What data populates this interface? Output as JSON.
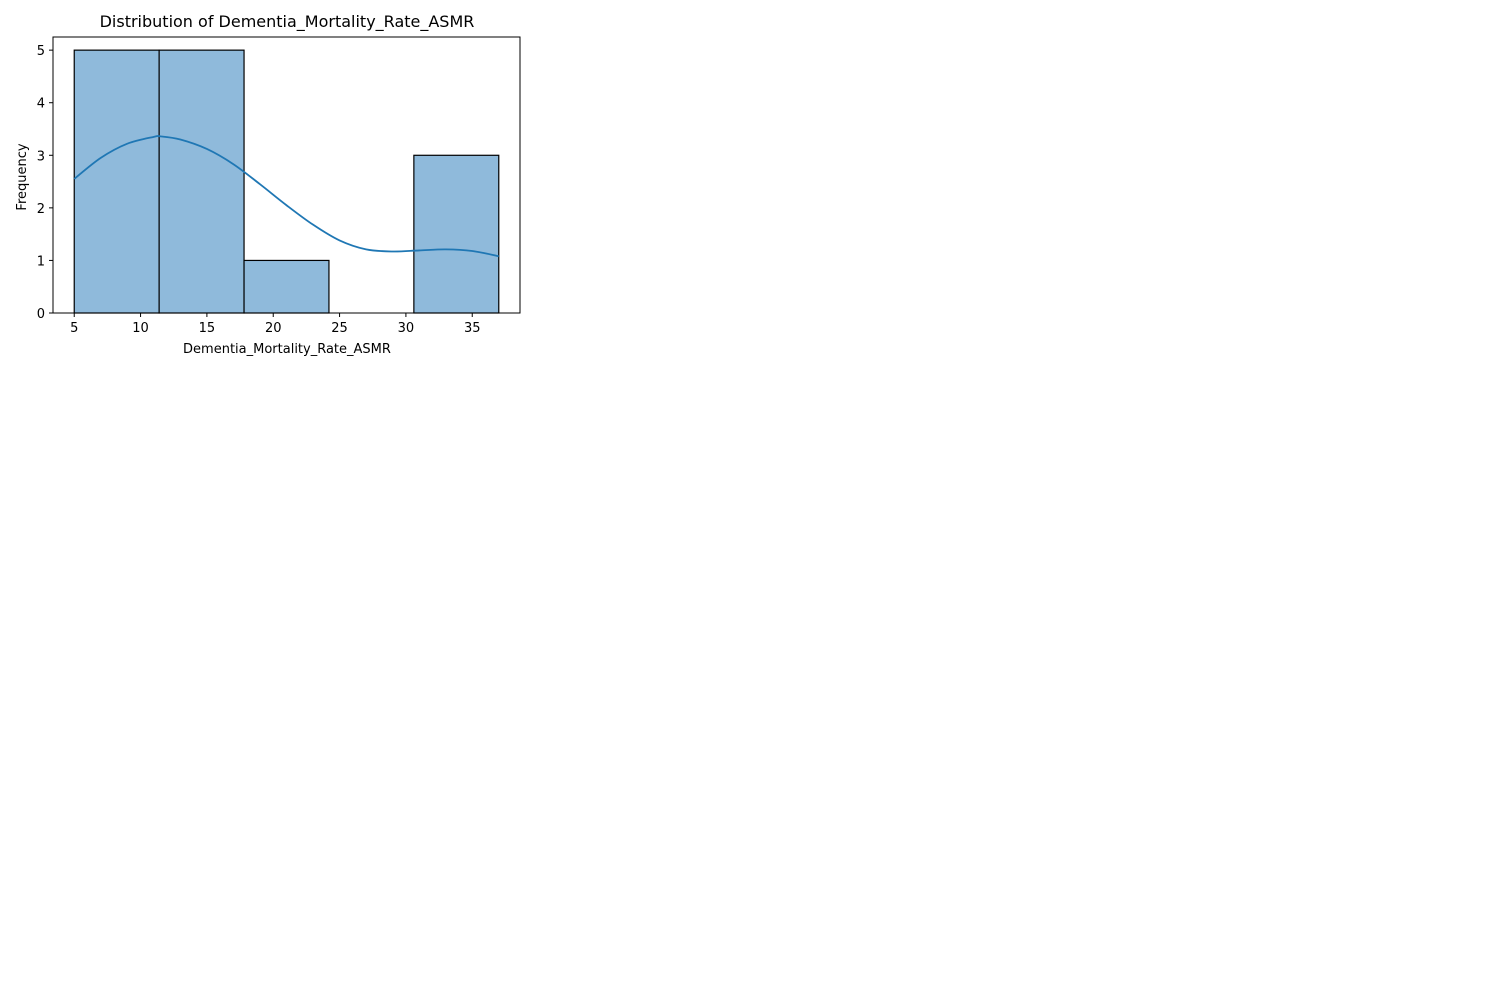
{
  "chart_data": {
    "type": "bar",
    "title": "Distribution of Dementia_Mortality_Rate_ASMR",
    "xlabel": "Dementia_Mortality_Rate_ASMR",
    "ylabel": "Frequency",
    "xlim": [
      3.4,
      38.6
    ],
    "ylim": [
      0,
      5.25
    ],
    "xticks": [
      5,
      10,
      15,
      20,
      25,
      30,
      35
    ],
    "yticks": [
      0,
      1,
      2,
      3,
      4,
      5
    ],
    "bins": [
      {
        "start": 5.0,
        "end": 11.4,
        "count": 5
      },
      {
        "start": 11.4,
        "end": 17.8,
        "count": 5
      },
      {
        "start": 17.8,
        "end": 24.2,
        "count": 1
      },
      {
        "start": 24.2,
        "end": 30.6,
        "count": 0
      },
      {
        "start": 30.6,
        "end": 37.0,
        "count": 3
      }
    ],
    "kde": {
      "x": [
        5,
        7,
        9,
        11,
        11.5,
        13,
        15,
        17,
        19,
        21,
        23,
        25,
        27,
        29,
        31,
        33,
        35,
        37
      ],
      "y": [
        2.55,
        2.95,
        3.22,
        3.35,
        3.36,
        3.3,
        3.12,
        2.83,
        2.45,
        2.05,
        1.68,
        1.38,
        1.21,
        1.17,
        1.19,
        1.21,
        1.18,
        1.08
      ]
    },
    "bar_color": "#8fbadb",
    "bar_edge_color": "#000000",
    "kde_color": "#1f77b4",
    "grid": false
  }
}
